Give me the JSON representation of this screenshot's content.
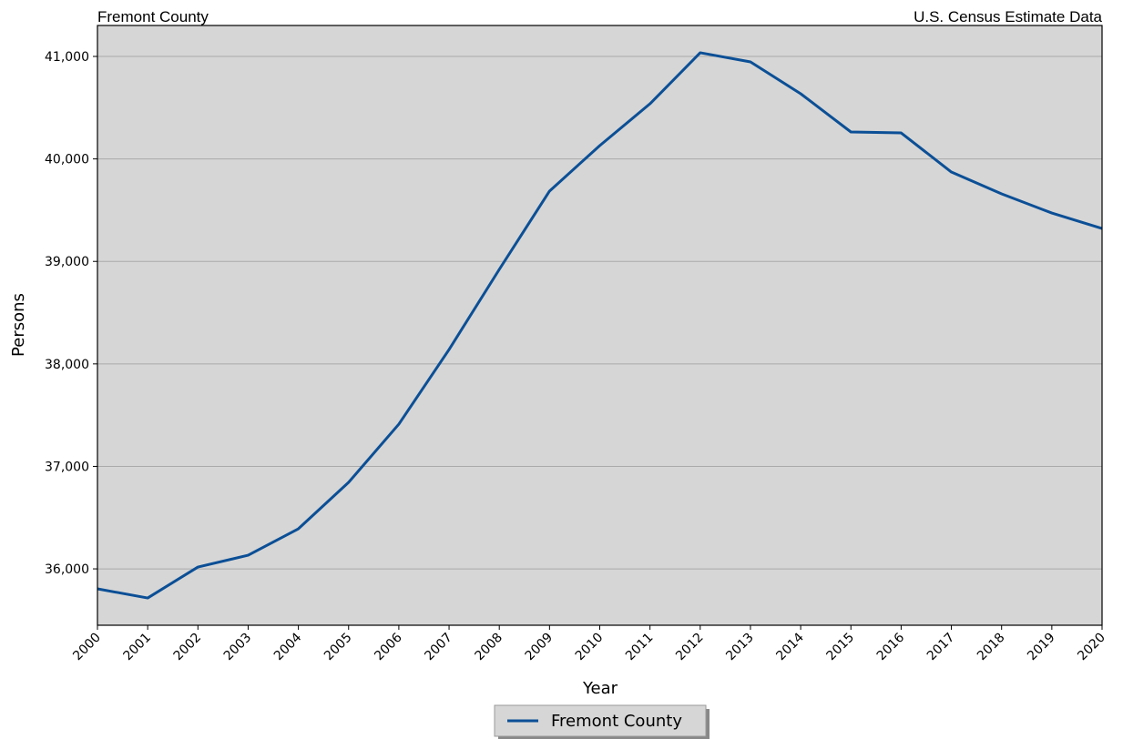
{
  "chart_data": {
    "type": "line",
    "title_left": "Fremont County",
    "title_right": "U.S. Census Estimate Data",
    "x_label": "Year",
    "y_label": "Persons",
    "x": [
      2000,
      2001,
      2002,
      2003,
      2004,
      2005,
      2006,
      2007,
      2008,
      2009,
      2010,
      2011,
      2012,
      2013,
      2014,
      2015,
      2016,
      2017,
      2018,
      2019,
      2020
    ],
    "series": [
      {
        "name": "Fremont County",
        "color": "#0b4f96",
        "values": [
          35805,
          35716,
          36018,
          36133,
          36391,
          36844,
          37412,
          38140,
          38922,
          39686,
          40130,
          40538,
          41036,
          40947,
          40636,
          40263,
          40254,
          39872,
          39659,
          39472,
          39321
        ]
      }
    ],
    "xlim": [
      2000,
      2020
    ],
    "xticks": [
      2000,
      2001,
      2002,
      2003,
      2004,
      2005,
      2006,
      2007,
      2008,
      2009,
      2010,
      2011,
      2012,
      2013,
      2014,
      2015,
      2016,
      2017,
      2018,
      2019,
      2020
    ],
    "ylim": [
      35450,
      41302
    ],
    "yticks": [
      {
        "value": 36000,
        "label": "36,000"
      },
      {
        "value": 37000,
        "label": "37,000"
      },
      {
        "value": 38000,
        "label": "38,000"
      },
      {
        "value": 39000,
        "label": "39,000"
      },
      {
        "value": 40000,
        "label": "40,000"
      },
      {
        "value": 41000,
        "label": "41,000"
      }
    ],
    "grid": true,
    "legend": "bottom",
    "background": "#d6d6d6"
  }
}
